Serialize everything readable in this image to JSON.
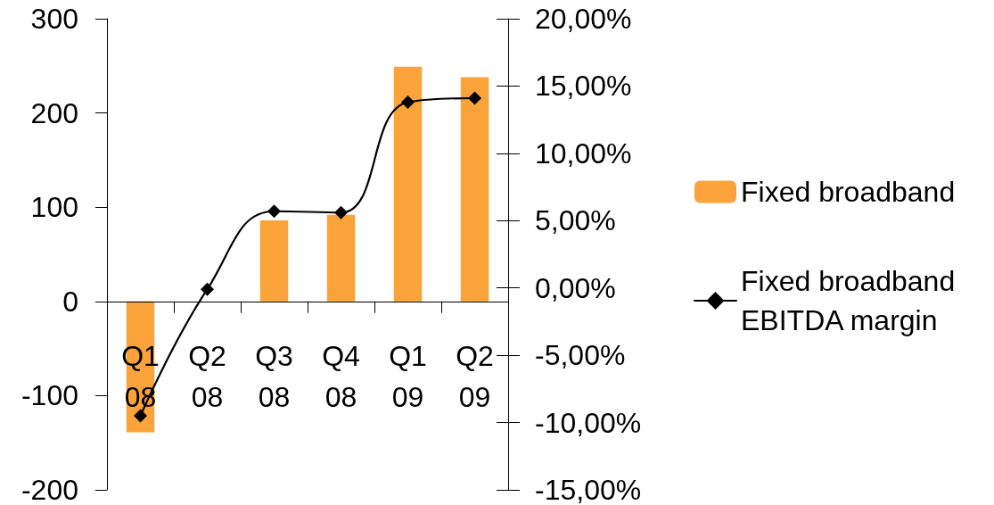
{
  "chart_data": {
    "type": "bar",
    "categories": [
      "Q1 08",
      "Q2 08",
      "Q3 08",
      "Q4 08",
      "Q1 09",
      "Q2 09"
    ],
    "series": [
      {
        "name": "Fixed broadband",
        "color": "#f9a33a",
        "values": [
          -139,
          null,
          86,
          92,
          249,
          238
        ]
      },
      {
        "name": "Fixed broadband EBITDA margin",
        "type": "line",
        "axis": "y2",
        "color": "#000000",
        "values": [
          -9.5,
          -0.1,
          5.7,
          5.6,
          13.8,
          14.1
        ]
      }
    ],
    "ylim": [
      -200,
      300
    ],
    "yticks": [
      -200,
      -100,
      0,
      100,
      200,
      300
    ],
    "y2lim": [
      -15,
      20
    ],
    "y2ticks": [
      {
        "value": -15,
        "label": "-15,00%"
      },
      {
        "value": -10,
        "label": "-10,00%"
      },
      {
        "value": -5,
        "label": "-5,00%"
      },
      {
        "value": 0,
        "label": "0,00%"
      },
      {
        "value": 5,
        "label": "5,00%"
      },
      {
        "value": 10,
        "label": "10,00%"
      },
      {
        "value": 15,
        "label": "15,00%"
      },
      {
        "value": 20,
        "label": "20,00%"
      }
    ],
    "legend": "right",
    "marker": "diamond",
    "line_style": "solid"
  }
}
